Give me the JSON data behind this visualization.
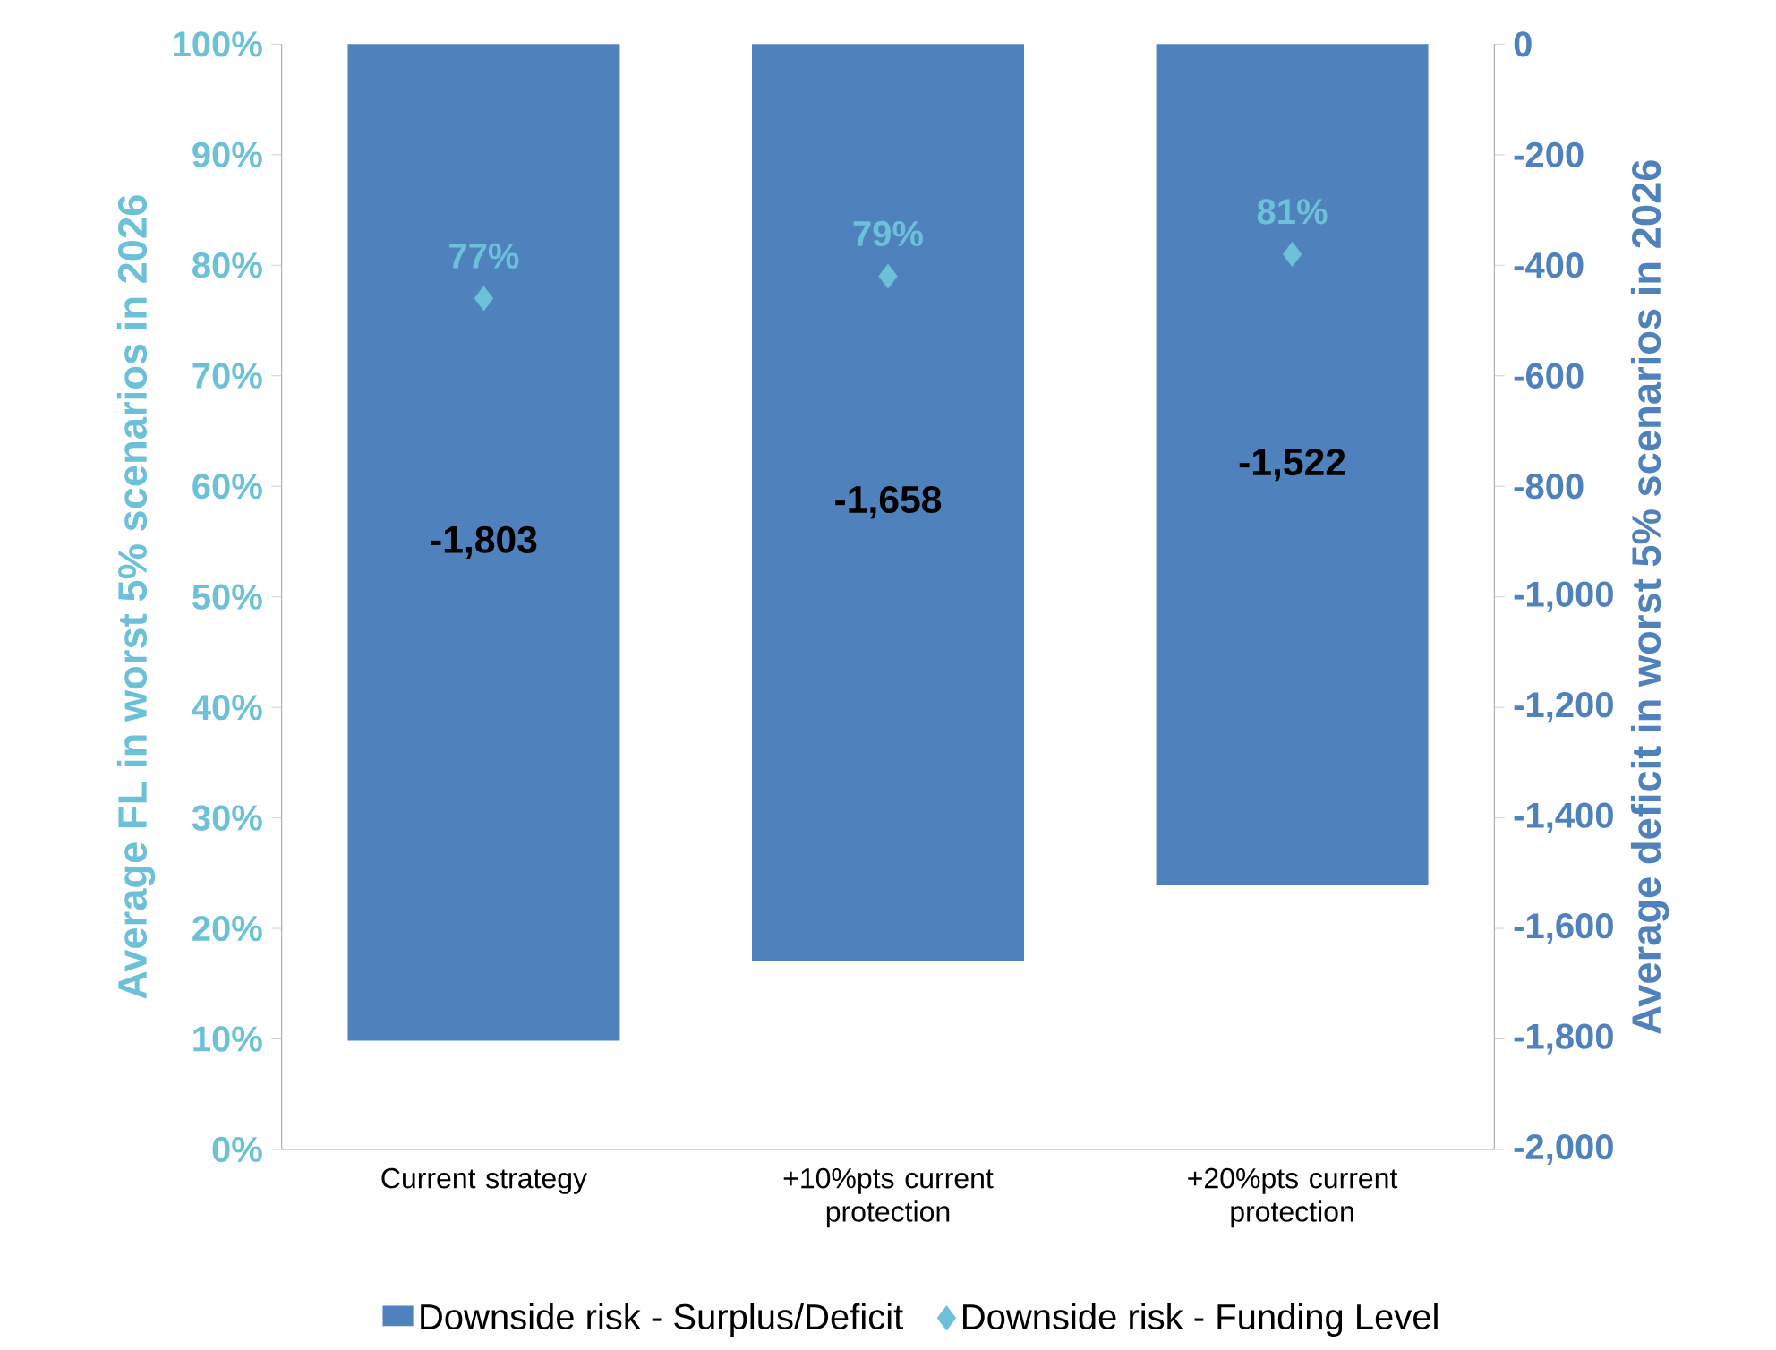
{
  "chart_data": {
    "type": "bar",
    "categories": [
      "Current strategy",
      "+10%pts current protection",
      "+20%pts current protection"
    ],
    "series": [
      {
        "name": "Downside risk - Surplus/Deficit",
        "axis": "y2",
        "color": "#4f81bd",
        "values": [
          -1803,
          -1658,
          -1522
        ],
        "value_labels": [
          "-1,803",
          "-1,658",
          "-1,522"
        ]
      },
      {
        "name": "Downside risk - Funding Level",
        "type": "scatter",
        "axis": "y",
        "color": "#6cc0d8",
        "marker": "diamond",
        "values": [
          77,
          79,
          81
        ],
        "value_labels": [
          "77%",
          "79%",
          "81%"
        ]
      }
    ],
    "ylabel": "Average FL in worst 5% scenarios in 2026",
    "y2label": "Average deficit in worst 5% scenarios in 2026",
    "ylim": [
      0,
      100
    ],
    "yticks": [
      {
        "value": 0,
        "label": "0%"
      },
      {
        "value": 10,
        "label": "10%"
      },
      {
        "value": 20,
        "label": "20%"
      },
      {
        "value": 30,
        "label": "30%"
      },
      {
        "value": 40,
        "label": "40%"
      },
      {
        "value": 50,
        "label": "50%"
      },
      {
        "value": 60,
        "label": "60%"
      },
      {
        "value": 70,
        "label": "70%"
      },
      {
        "value": 80,
        "label": "80%"
      },
      {
        "value": 90,
        "label": "90%"
      },
      {
        "value": 100,
        "label": "100%"
      }
    ],
    "y2lim": [
      -2000,
      0
    ],
    "y2ticks": [
      {
        "value": -2000,
        "label": "-2,000"
      },
      {
        "value": -1800,
        "label": "-1,800"
      },
      {
        "value": -1600,
        "label": "-1,600"
      },
      {
        "value": -1400,
        "label": "-1,400"
      },
      {
        "value": -1200,
        "label": "-1,200"
      },
      {
        "value": -1000,
        "label": "-1,000"
      },
      {
        "value": -800,
        "label": "-800"
      },
      {
        "value": -600,
        "label": "-600"
      },
      {
        "value": -400,
        "label": "-400"
      },
      {
        "value": -200,
        "label": "-200"
      },
      0
    ],
    "legend": "bottom"
  }
}
